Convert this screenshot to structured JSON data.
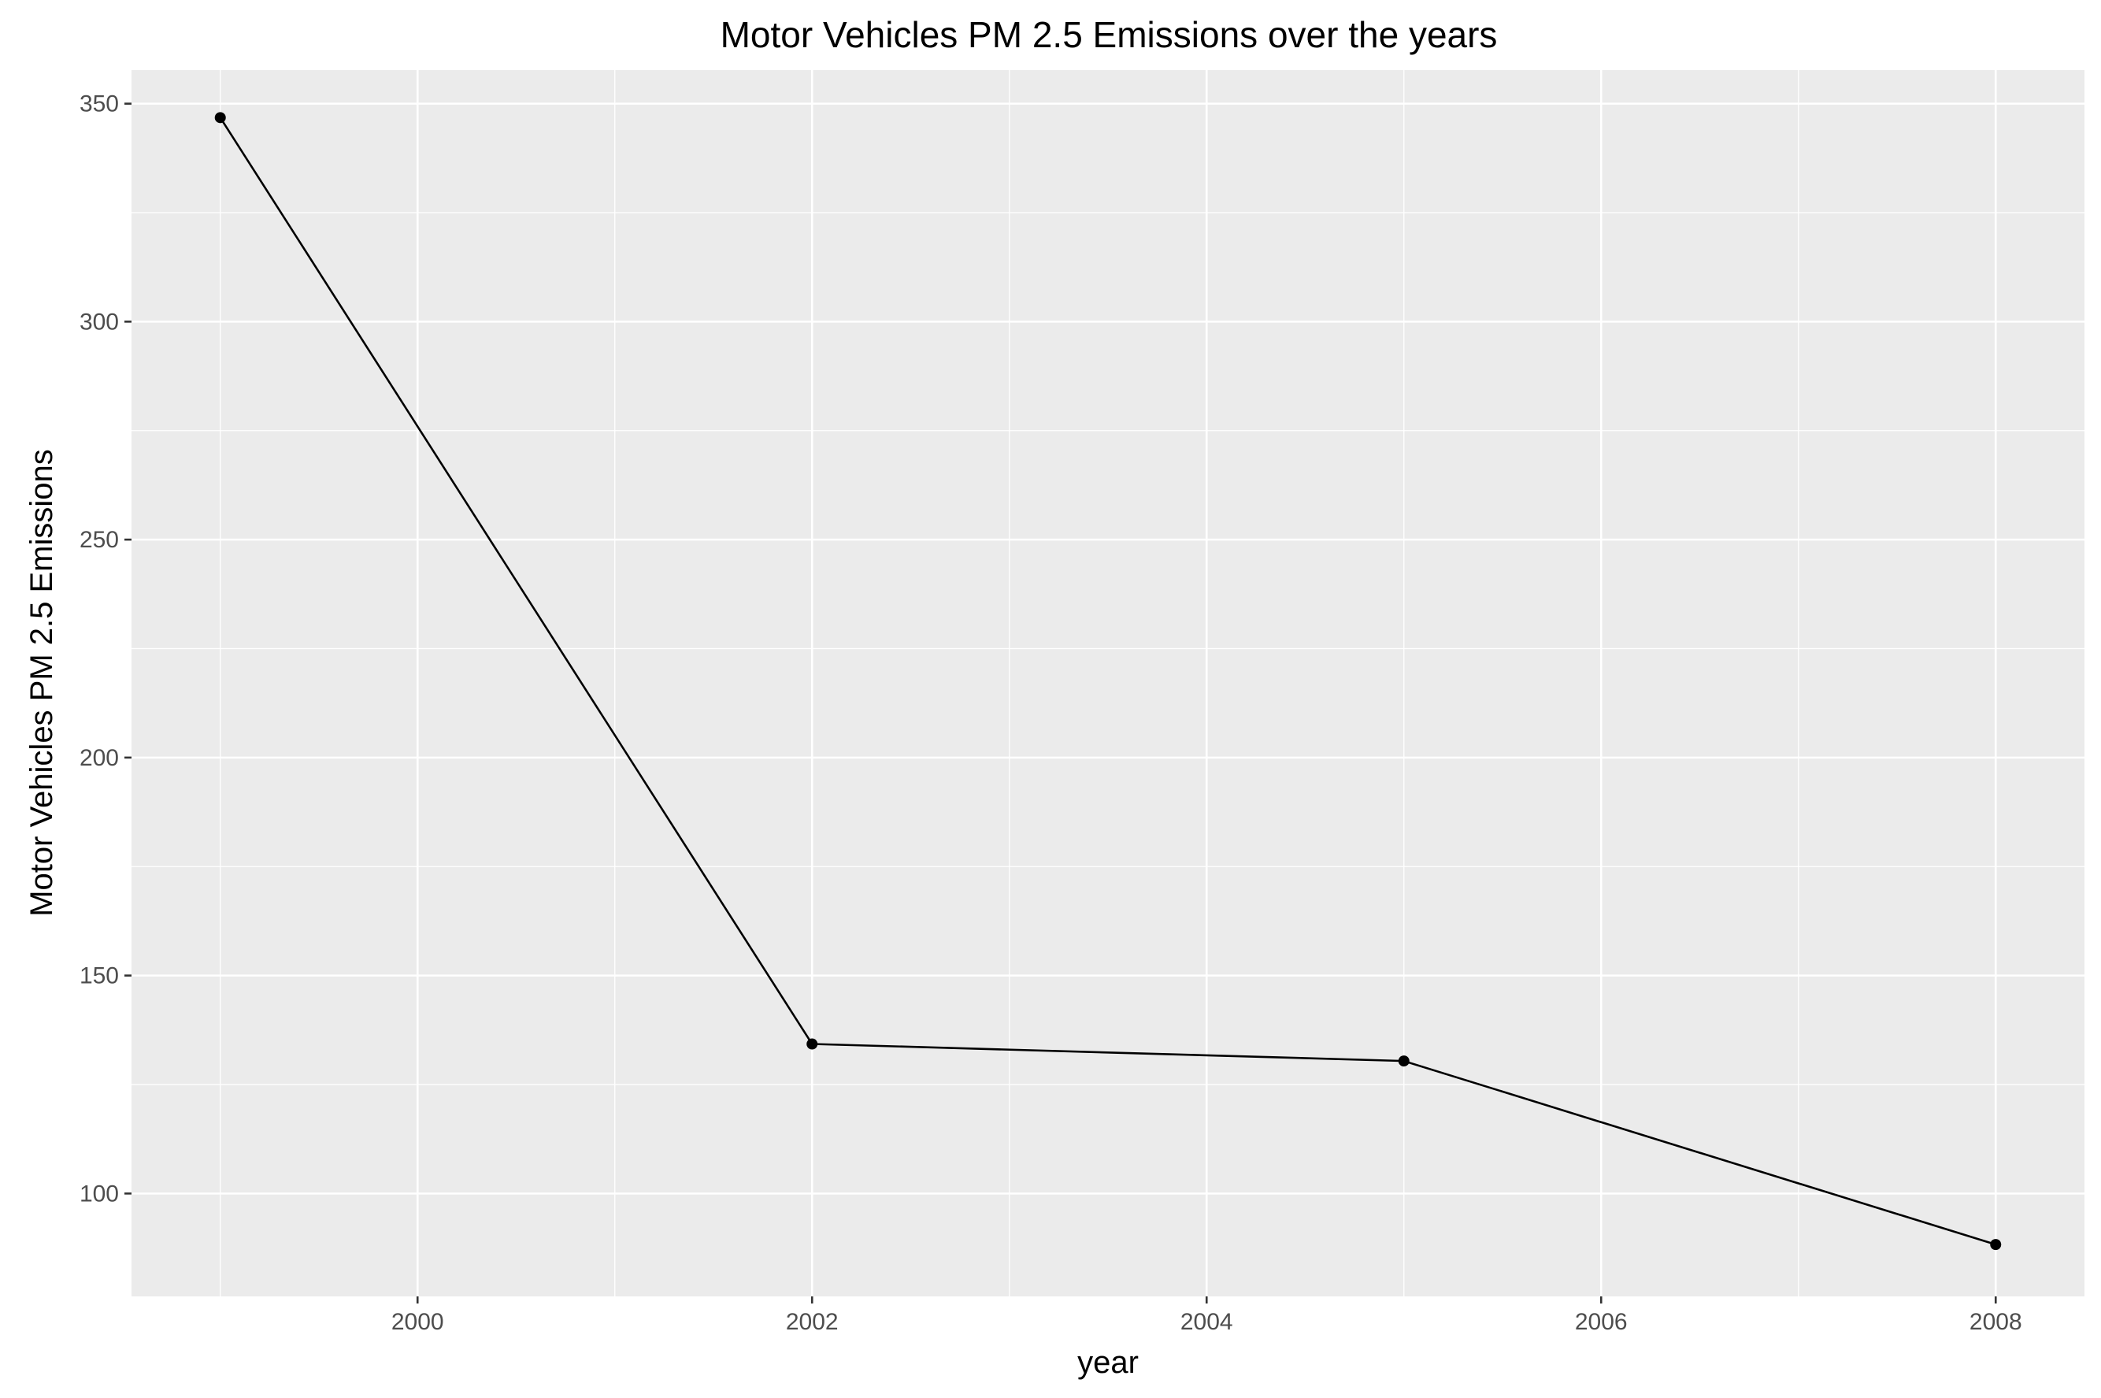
{
  "chart_data": {
    "type": "line",
    "title": "Motor Vehicles PM 2.5 Emissions over the years",
    "xlabel": "year",
    "ylabel": "Motor Vehicles PM 2.5 Emissions",
    "x": [
      1999,
      2002,
      2005,
      2008
    ],
    "series": [
      {
        "values": [
          346.8,
          134.3,
          130.4,
          88.3
        ]
      }
    ],
    "xlim": [
      1998.55,
      2008.45
    ],
    "ylim": [
      76.4,
      357.7
    ],
    "x_ticks": [
      2000,
      2002,
      2004,
      2006,
      2008
    ],
    "x_tick_labels": [
      "2000",
      "2002",
      "2004",
      "2006",
      "2008"
    ],
    "y_ticks": [
      100,
      150,
      200,
      250,
      300,
      350
    ],
    "y_tick_labels": [
      "100",
      "150",
      "200",
      "250",
      "300",
      "350"
    ],
    "grid": true,
    "legend": "none",
    "colors": {
      "line": "#000000",
      "panel": "#ebebeb",
      "grid": "#ffffff"
    }
  }
}
